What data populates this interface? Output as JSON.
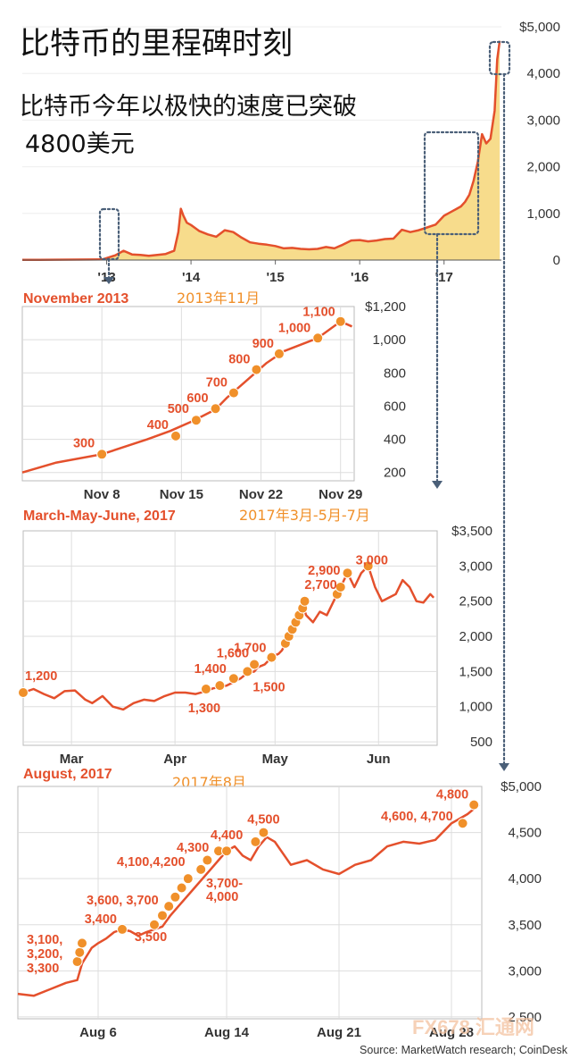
{
  "title": "比特币的里程碑时刻",
  "subtitle_line1": "比特币今年以极快的速度已突破",
  "subtitle_line2": "4800美元",
  "source": "Source: MarketWatch research; CoinDesk",
  "watermark": "FX678 汇通网",
  "colors": {
    "line": "#e4502c",
    "fill": "#f7dc8c",
    "dot": "#f0902a",
    "callout": "#4a5f78",
    "grid": "#dddddd"
  },
  "chart_data": [
    {
      "id": "overview",
      "type": "area",
      "ylim": [
        0,
        5000
      ],
      "yticks": [
        0,
        1000,
        2000,
        3000,
        4000,
        5000
      ],
      "ytick_labels": [
        "0",
        "1,000",
        "2,000",
        "3,000",
        "4,000",
        "$5,000"
      ],
      "xlim": [
        2012.0,
        2017.68
      ],
      "xticks": [
        2013,
        2014,
        2015,
        2016,
        2017
      ],
      "xtick_labels": [
        "'13",
        "'14",
        "'15",
        "'16",
        "'17"
      ],
      "x": [
        2012.0,
        2012.2,
        2012.4,
        2012.6,
        2012.8,
        2012.95,
        2013.1,
        2013.2,
        2013.3,
        2013.4,
        2013.5,
        2013.6,
        2013.7,
        2013.8,
        2013.85,
        2013.88,
        2013.91,
        2013.95,
        2014.0,
        2014.1,
        2014.2,
        2014.3,
        2014.4,
        2014.5,
        2014.6,
        2014.7,
        2014.8,
        2014.9,
        2015.0,
        2015.1,
        2015.2,
        2015.3,
        2015.4,
        2015.5,
        2015.6,
        2015.7,
        2015.8,
        2015.9,
        2016.0,
        2016.1,
        2016.2,
        2016.3,
        2016.4,
        2016.5,
        2016.6,
        2016.7,
        2016.8,
        2016.9,
        2017.0,
        2017.05,
        2017.1,
        2017.15,
        2017.2,
        2017.25,
        2017.3,
        2017.35,
        2017.4,
        2017.45,
        2017.5,
        2017.55,
        2017.6,
        2017.63,
        2017.66
      ],
      "values": [
        5,
        6,
        7,
        10,
        12,
        13,
        100,
        200,
        120,
        110,
        90,
        110,
        130,
        200,
        600,
        1100,
        950,
        800,
        750,
        620,
        550,
        500,
        640,
        600,
        480,
        380,
        350,
        330,
        300,
        250,
        260,
        240,
        230,
        240,
        280,
        250,
        330,
        420,
        430,
        400,
        420,
        450,
        460,
        650,
        600,
        640,
        700,
        760,
        950,
        1000,
        1050,
        1100,
        1150,
        1250,
        1400,
        1700,
        2100,
        2700,
        2500,
        2600,
        3200,
        4300,
        4700
      ]
    },
    {
      "id": "nov2013",
      "type": "line",
      "title": "November 2013",
      "title_cn": "2013年11月",
      "ylim": [
        150,
        1200
      ],
      "yticks": [
        200,
        400,
        600,
        800,
        1000,
        1200
      ],
      "ytick_labels": [
        "200",
        "400",
        "600",
        "800",
        "1,000",
        "$1,200"
      ],
      "xlim": [
        1,
        30.2
      ],
      "xticks": [
        8,
        15,
        22,
        29
      ],
      "xtick_labels": [
        "Nov 8",
        "Nov 15",
        "Nov 22",
        "Nov 29"
      ],
      "x": [
        1,
        4,
        8,
        12,
        14,
        16,
        18,
        19,
        20.5,
        22.5,
        24,
        27,
        29,
        30
      ],
      "values": [
        200,
        260,
        310,
        400,
        450,
        510,
        580,
        650,
        740,
        860,
        930,
        1010,
        1110,
        1080
      ],
      "milestones": [
        {
          "x": 8,
          "y": 310,
          "label": "300"
        },
        {
          "x": 14.5,
          "y": 420,
          "label": "400"
        },
        {
          "x": 16.3,
          "y": 515,
          "label": "500"
        },
        {
          "x": 18,
          "y": 585,
          "label": "600"
        },
        {
          "x": 19.6,
          "y": 680,
          "label": "700"
        },
        {
          "x": 21.6,
          "y": 820,
          "label": "800"
        },
        {
          "x": 23.6,
          "y": 915,
          "label": "900"
        },
        {
          "x": 27,
          "y": 1010,
          "label": "1,000"
        },
        {
          "x": 29,
          "y": 1110,
          "label": "1,100"
        }
      ]
    },
    {
      "id": "mar_jun_2017",
      "type": "line",
      "title": "March-May-June, 2017",
      "title_cn": "2017年3月-5月-7月",
      "ylim": [
        450,
        3500
      ],
      "yticks": [
        500,
        1000,
        1500,
        2000,
        2500,
        3000,
        3500
      ],
      "ytick_labels": [
        "500",
        "1,000",
        "1,500",
        "2,000",
        "2,500",
        "3,000",
        "$3,500"
      ],
      "xlim": [
        0,
        120
      ],
      "xticks": [
        14,
        44,
        73,
        103
      ],
      "xtick_labels": [
        "Mar",
        "Apr",
        "May",
        "Jun"
      ],
      "x": [
        0,
        3,
        6,
        9,
        12,
        15,
        18,
        20,
        23,
        26,
        29,
        32,
        35,
        38,
        41,
        44,
        47,
        50,
        53,
        55,
        57,
        59,
        61,
        63,
        65,
        67,
        68,
        70,
        72,
        73,
        74,
        75,
        76,
        77,
        78,
        79,
        80,
        81,
        82,
        84,
        86,
        88,
        90,
        91,
        92,
        93,
        94,
        96,
        98,
        100,
        102,
        104,
        106,
        108,
        110,
        112,
        114,
        116,
        118,
        119
      ],
      "values": [
        1200,
        1250,
        1180,
        1120,
        1220,
        1230,
        1100,
        1050,
        1150,
        1000,
        960,
        1050,
        1100,
        1080,
        1150,
        1200,
        1200,
        1180,
        1220,
        1260,
        1280,
        1300,
        1350,
        1400,
        1480,
        1500,
        1560,
        1600,
        1700,
        1730,
        1750,
        1800,
        1900,
        2000,
        2100,
        2200,
        2350,
        2450,
        2300,
        2200,
        2350,
        2300,
        2500,
        2600,
        2700,
        2800,
        2900,
        2700,
        2900,
        3000,
        2700,
        2500,
        2550,
        2600,
        2800,
        2700,
        2500,
        2480,
        2600,
        2550
      ],
      "milestones": [
        {
          "x": 0,
          "y": 1200,
          "label": "1,200"
        },
        {
          "x": 53,
          "y": 1250,
          "label": "1,300"
        },
        {
          "x": 57,
          "y": 1300,
          "label": ""
        },
        {
          "x": 61,
          "y": 1400,
          "label": "1,400"
        },
        {
          "x": 65,
          "y": 1500,
          "label": "1,500"
        },
        {
          "x": 67,
          "y": 1600,
          "label": "1,600"
        },
        {
          "x": 72,
          "y": 1700,
          "label": "1,700"
        },
        {
          "x": 76,
          "y": 1900,
          "label": ""
        },
        {
          "x": 77,
          "y": 2000,
          "label": ""
        },
        {
          "x": 78,
          "y": 2100,
          "label": ""
        },
        {
          "x": 79,
          "y": 2200,
          "label": ""
        },
        {
          "x": 80,
          "y": 2300,
          "label": ""
        },
        {
          "x": 81,
          "y": 2400,
          "label": ""
        },
        {
          "x": 81.6,
          "y": 2500,
          "label": ""
        },
        {
          "x": 91,
          "y": 2600,
          "label": ""
        },
        {
          "x": 92,
          "y": 2700,
          "label": "2,700"
        },
        {
          "x": 94,
          "y": 2900,
          "label": "2,900"
        },
        {
          "x": 100,
          "y": 3000,
          "label": "3,000"
        }
      ]
    },
    {
      "id": "aug2017",
      "type": "line",
      "title": "August, 2017",
      "title_cn": "2017年8月",
      "ylim": [
        2480,
        5000
      ],
      "yticks": [
        2500,
        3000,
        3500,
        4000,
        4500,
        5000
      ],
      "ytick_labels": [
        "2,500",
        "3,000",
        "3,500",
        "4,000",
        "4,500",
        "$5,000"
      ],
      "xlim": [
        1,
        30
      ],
      "xticks": [
        6,
        14,
        21,
        28
      ],
      "xtick_labels": [
        "Aug 6",
        "Aug 14",
        "Aug 21",
        "Aug 28"
      ],
      "x": [
        1,
        2,
        3,
        4,
        4.7,
        5,
        5.6,
        6,
        6.5,
        7,
        7.5,
        8,
        8.5,
        9,
        9.5,
        10,
        10.5,
        11,
        11.5,
        12,
        12.5,
        13,
        13.5,
        14,
        14.5,
        15,
        15.5,
        16,
        16.5,
        17,
        18,
        19,
        20,
        21,
        22,
        23,
        24,
        25,
        26,
        27,
        28,
        29,
        29.7
      ],
      "values": [
        2750,
        2730,
        2800,
        2870,
        2900,
        3080,
        3250,
        3300,
        3350,
        3420,
        3450,
        3430,
        3380,
        3420,
        3450,
        3480,
        3600,
        3700,
        3800,
        3900,
        4000,
        4100,
        4200,
        4300,
        4350,
        4250,
        4200,
        4350,
        4450,
        4400,
        4150,
        4200,
        4100,
        4050,
        4150,
        4200,
        4350,
        4400,
        4380,
        4420,
        4600,
        4700,
        4800
      ],
      "milestones": [
        {
          "x": 4.7,
          "y": 3100,
          "label": ""
        },
        {
          "x": 4.85,
          "y": 3200,
          "label": ""
        },
        {
          "x": 5,
          "y": 3300,
          "label": ""
        },
        {
          "x": 7.5,
          "y": 3450,
          "label": "3,400"
        },
        {
          "x": 9.5,
          "y": 3500,
          "label": "3,500"
        },
        {
          "x": 10,
          "y": 3600,
          "label": ""
        },
        {
          "x": 10.4,
          "y": 3700,
          "label": ""
        },
        {
          "x": 10.8,
          "y": 3800,
          "label": ""
        },
        {
          "x": 11.2,
          "y": 3900,
          "label": ""
        },
        {
          "x": 11.6,
          "y": 4000,
          "label": ""
        },
        {
          "x": 12.4,
          "y": 4100,
          "label": ""
        },
        {
          "x": 12.8,
          "y": 4200,
          "label": ""
        },
        {
          "x": 13.5,
          "y": 4300,
          "label": ""
        },
        {
          "x": 14,
          "y": 4300,
          "label": ""
        },
        {
          "x": 15.8,
          "y": 4400,
          "label": ""
        },
        {
          "x": 16.3,
          "y": 4500,
          "label": "4,500"
        },
        {
          "x": 28.7,
          "y": 4600,
          "label": ""
        },
        {
          "x": 29.4,
          "y": 4800,
          "label": "4,800"
        }
      ],
      "group_labels": [
        {
          "text": [
            "3,100,",
            "3,200,",
            "3,300"
          ]
        },
        {
          "text": [
            "3,600, 3,700"
          ]
        },
        {
          "text": [
            "4,100,4,200"
          ]
        },
        {
          "text": [
            "4,300"
          ]
        },
        {
          "text": [
            "4,400"
          ]
        },
        {
          "text": [
            "3,700-",
            "4,000"
          ]
        },
        {
          "text": [
            "4,600, 4,700"
          ]
        }
      ]
    }
  ]
}
